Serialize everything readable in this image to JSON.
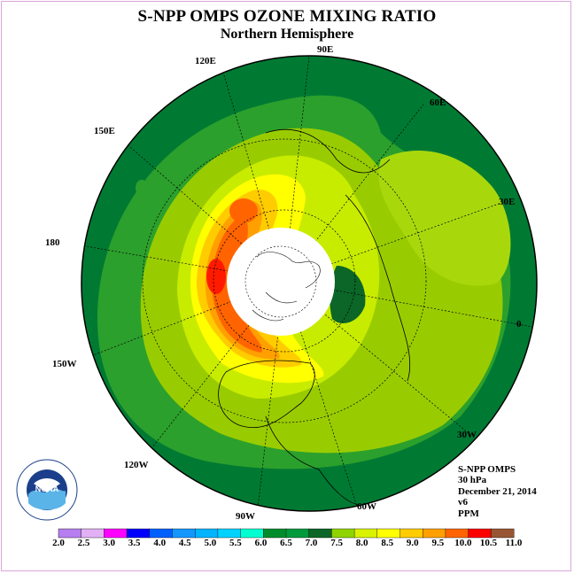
{
  "title": "S-NPP OMPS OZONE MIXING RATIO",
  "subtitle": "Northern Hemisphere",
  "longitude_labels": [
    "90E",
    "60E",
    "30E",
    "0",
    "30W",
    "60W",
    "90W",
    "120W",
    "150W",
    "180",
    "150E",
    "120E"
  ],
  "info": {
    "instrument": "S-NPP OMPS",
    "level": "30 hPa",
    "date": "December 21, 2014",
    "version": "v6",
    "units": "PPM"
  },
  "colorbar": {
    "ticks": [
      "2.0",
      "2.5",
      "3.0",
      "3.5",
      "4.0",
      "4.5",
      "5.0",
      "5.5",
      "6.0",
      "6.5",
      "7.0",
      "7.5",
      "8.0",
      "8.5",
      "9.0",
      "9.5",
      "10.0",
      "10.5",
      "11.0"
    ],
    "colors": [
      "#b77ef0",
      "#e2b0f5",
      "#ff00ff",
      "#0000ff",
      "#0060ff",
      "#1496ff",
      "#00b4ff",
      "#00d2ff",
      "#00ffd0",
      "#008c2c",
      "#009a3c",
      "#0b6628",
      "#8fd400",
      "#d9f200",
      "#ffff00",
      "#ffcc00",
      "#ffa000",
      "#ff6400",
      "#ff0000",
      "#995533"
    ]
  },
  "logo": {
    "text": "NOAA",
    "ring_text": "NATIONAL OCEANIC AND ATMOSPHERIC ADMINISTRATION · U.S. DEPARTMENT OF COMMERCE"
  }
}
